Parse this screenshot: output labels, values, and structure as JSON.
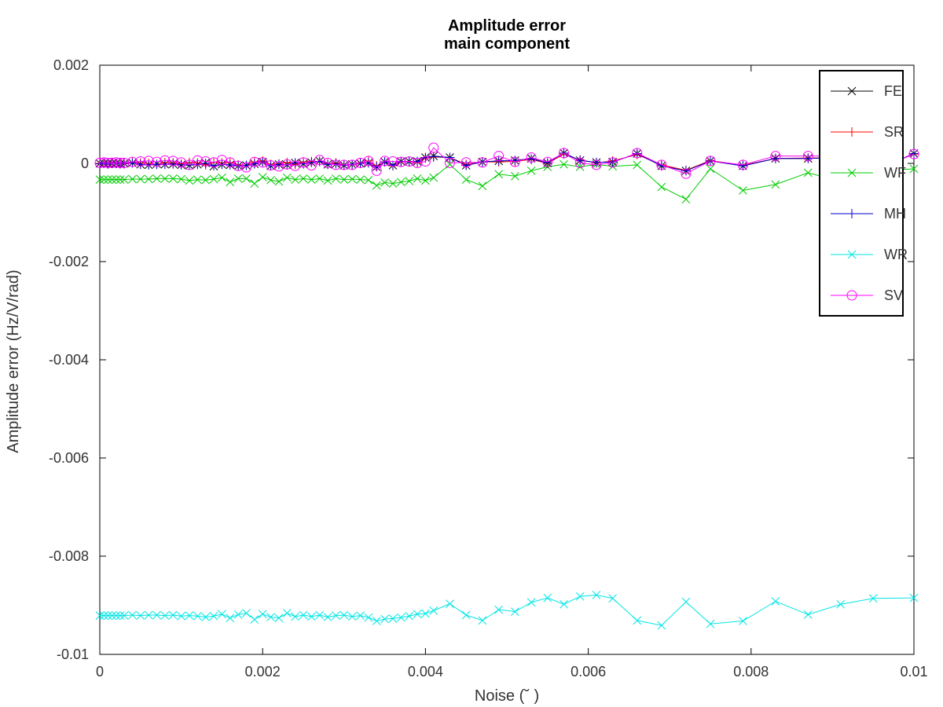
{
  "chart_data": {
    "type": "line",
    "title": "Amplitude error",
    "subtitle": "main component",
    "xlabel": "Noise (˘ )",
    "ylabel": "Amplitude error (Hz/V/rad)",
    "xlim": [
      0,
      0.01
    ],
    "ylim": [
      -0.01,
      0.002
    ],
    "xticks": [
      0,
      0.002,
      0.004,
      0.006,
      0.008,
      0.01
    ],
    "xtick_labels": [
      "0",
      "0.002",
      "0.004",
      "0.006",
      "0.008",
      "0.01"
    ],
    "yticks": [
      0.002,
      0,
      -0.002,
      -0.004,
      -0.006,
      -0.008,
      -0.01
    ],
    "ytick_labels": [
      "0.002",
      "0",
      "-0.002",
      "-0.004",
      "-0.006",
      "-0.008",
      "-0.01"
    ],
    "grid": false,
    "legend_position": "top-right",
    "x": [
      0,
      5e-05,
      0.0001,
      0.00015,
      0.0002,
      0.00025,
      0.0003,
      0.0004,
      0.0005,
      0.0006,
      0.0007,
      0.0008,
      0.0009,
      0.001,
      0.0011,
      0.0012,
      0.0013,
      0.0014,
      0.0015,
      0.0016,
      0.0017,
      0.0018,
      0.0019,
      0.002,
      0.0021,
      0.0022,
      0.0023,
      0.0024,
      0.0025,
      0.0026,
      0.0027,
      0.0028,
      0.0029,
      0.003,
      0.0031,
      0.0032,
      0.0033,
      0.0034,
      0.0035,
      0.0036,
      0.0037,
      0.0038,
      0.0039,
      0.004,
      0.0041,
      0.0043,
      0.0045,
      0.0047,
      0.0049,
      0.0051,
      0.0053,
      0.0055,
      0.0057,
      0.0059,
      0.0061,
      0.0063,
      0.0066,
      0.0069,
      0.0072,
      0.0075,
      0.0079,
      0.0083,
      0.0087,
      0.0091,
      0.0095,
      0.01
    ],
    "series": [
      {
        "name": "FE",
        "color": "#000000",
        "marker": "x",
        "values": [
          0,
          0,
          0,
          0,
          0,
          -1e-05,
          0,
          1e-05,
          -2e-05,
          -3e-05,
          -1e-05,
          -2e-05,
          -1e-05,
          -3e-05,
          -4e-05,
          -2e-05,
          1e-05,
          -6e-05,
          -2e-05,
          -3e-05,
          -5e-05,
          -4e-05,
          -1e-05,
          3e-05,
          -5e-05,
          -2e-05,
          -3e-05,
          1e-05,
          -1e-05,
          2e-05,
          5e-05,
          -2e-05,
          -1e-05,
          -4e-05,
          -2e-05,
          0,
          1e-05,
          -7e-05,
          3e-05,
          -4e-05,
          4e-05,
          4e-05,
          4e-05,
          0.00012,
          0.00015,
          0.00012,
          -4e-05,
          3e-05,
          5e-05,
          6e-05,
          0.0001,
          1e-05,
          0.00021,
          6e-05,
          2e-05,
          3e-05,
          0.0002,
          -5e-05,
          -0.00015,
          5e-05,
          -5e-05,
          0.0001,
          0.0001,
          0.00013,
          -0.00016,
          0.0002
        ]
      },
      {
        "name": "SR",
        "color": "#ff0000",
        "marker": "+",
        "values": [
          0,
          1e-05,
          -1e-05,
          1e-05,
          0,
          1e-05,
          -1e-05,
          2e-05,
          1e-05,
          0,
          -2e-05,
          2e-05,
          1e-05,
          -1e-05,
          2e-05,
          1e-05,
          -3e-05,
          2e-05,
          1e-05,
          2e-05,
          -3e-05,
          -4e-05,
          3e-05,
          5e-05,
          -2e-05,
          -1e-05,
          2e-05,
          -2e-05,
          3e-05,
          4e-05,
          4e-05,
          -1e-05,
          1e-05,
          -3e-05,
          -3e-05,
          1e-05,
          5e-05,
          -5e-05,
          3e-05,
          -5e-05,
          3e-05,
          4e-05,
          1e-05,
          0.00011,
          0.00013,
          0.00012,
          -2e-05,
          3e-05,
          3e-05,
          4e-05,
          8e-05,
          0,
          0.00019,
          7e-05,
          1e-05,
          5e-05,
          0.00018,
          -3e-05,
          -0.00014,
          6e-05,
          -4e-05,
          0.0001,
          0.00011,
          0.00011,
          -0.00014,
          0.00019
        ]
      },
      {
        "name": "WF",
        "color": "#00cc00",
        "marker": "x",
        "values": [
          -0.00033,
          -0.00033,
          -0.00033,
          -0.00033,
          -0.00033,
          -0.00033,
          -0.00033,
          -0.00032,
          -0.00032,
          -0.00032,
          -0.00031,
          -0.00031,
          -0.00031,
          -0.00032,
          -0.00035,
          -0.00033,
          -0.00034,
          -0.00032,
          -0.00029,
          -0.00038,
          -0.00031,
          -0.00031,
          -0.00041,
          -0.00028,
          -0.00034,
          -0.00037,
          -0.00029,
          -0.00033,
          -0.00031,
          -0.00033,
          -0.00031,
          -0.00035,
          -0.00031,
          -0.00033,
          -0.00032,
          -0.00033,
          -0.00034,
          -0.00045,
          -0.00039,
          -0.00041,
          -0.00038,
          -0.00036,
          -0.00031,
          -0.00035,
          -0.00029,
          -2e-05,
          -0.00033,
          -0.00046,
          -0.00022,
          -0.00026,
          -0.00015,
          -7e-05,
          -2e-05,
          -7e-05,
          -2e-05,
          -6e-05,
          -3e-05,
          -0.00048,
          -0.00073,
          -0.00011,
          -0.00055,
          -0.00043,
          -0.00019,
          -0.00037,
          -0.00016,
          -0.00011
        ]
      },
      {
        "name": "MH",
        "color": "#0000cc",
        "marker": "+",
        "values": [
          -1e-05,
          0,
          -1e-05,
          0,
          0,
          -1e-05,
          0,
          1e-05,
          -2e-05,
          -3e-05,
          -2e-05,
          -2e-05,
          -1e-05,
          -3e-05,
          -3e-05,
          -2e-05,
          0,
          -5e-05,
          -2e-05,
          -3e-05,
          -5e-05,
          -4e-05,
          -1e-05,
          3e-05,
          -5e-05,
          -2e-05,
          -3e-05,
          1e-05,
          -1e-05,
          2e-05,
          4e-05,
          -2e-05,
          -1e-05,
          -4e-05,
          -2e-05,
          0,
          1e-05,
          -7e-05,
          3e-05,
          -4e-05,
          4e-05,
          3e-05,
          4e-05,
          0.00012,
          0.00014,
          0.00012,
          -4e-05,
          3e-05,
          5e-05,
          6e-05,
          9e-05,
          1e-05,
          0.00021,
          6e-05,
          2e-05,
          3e-05,
          0.0002,
          -5e-05,
          -0.00015,
          5e-05,
          -5e-05,
          0.0001,
          0.0001,
          0.00012,
          -0.00016,
          0.0002
        ]
      },
      {
        "name": "WR",
        "color": "#00e5e5",
        "marker": "x",
        "values": [
          -0.00921,
          -0.00921,
          -0.00921,
          -0.00921,
          -0.00921,
          -0.00921,
          -0.00921,
          -0.0092,
          -0.00921,
          -0.0092,
          -0.0092,
          -0.00921,
          -0.0092,
          -0.00922,
          -0.00921,
          -0.00922,
          -0.00924,
          -0.00922,
          -0.00918,
          -0.00926,
          -0.00919,
          -0.00916,
          -0.00929,
          -0.00918,
          -0.00924,
          -0.00926,
          -0.00916,
          -0.00923,
          -0.0092,
          -0.00923,
          -0.0092,
          -0.00924,
          -0.00921,
          -0.0092,
          -0.00923,
          -0.00921,
          -0.00925,
          -0.00932,
          -0.00928,
          -0.00927,
          -0.00925,
          -0.00922,
          -0.00918,
          -0.00917,
          -0.00911,
          -0.00897,
          -0.0092,
          -0.00931,
          -0.00909,
          -0.00913,
          -0.00894,
          -0.00885,
          -0.00898,
          -0.00882,
          -0.00879,
          -0.00886,
          -0.00931,
          -0.00941,
          -0.00893,
          -0.00938,
          -0.00932,
          -0.00892,
          -0.00919,
          -0.00898,
          -0.00886,
          -0.00885
        ]
      },
      {
        "name": "SV",
        "color": "#ff00ff",
        "marker": "o",
        "values": [
          1e-05,
          2e-05,
          1e-05,
          1e-05,
          2e-05,
          1e-05,
          1e-05,
          3e-05,
          4e-05,
          5e-05,
          3e-05,
          6e-05,
          5e-05,
          2e-05,
          -3e-05,
          6e-05,
          4e-05,
          2e-05,
          7e-05,
          2e-05,
          -5e-05,
          -8e-05,
          3e-05,
          2e-05,
          -4e-05,
          -6e-05,
          -2e-05,
          -5e-05,
          2e-05,
          -4e-05,
          7e-05,
          1e-05,
          -3e-05,
          -3e-05,
          -3e-05,
          1e-05,
          5e-05,
          -0.00015,
          5e-05,
          4e-05,
          3e-05,
          4e-05,
          1e-05,
          4e-05,
          0.00032,
          1e-05,
          2e-05,
          2e-05,
          0.00015,
          3e-05,
          0.00012,
          3e-05,
          0.00021,
          1e-05,
          -3e-05,
          2e-05,
          0.00021,
          -3e-05,
          -0.00021,
          5e-05,
          -3e-05,
          0.00015,
          0.00015,
          0.00015,
          -0.00015,
          0.00019
        ]
      }
    ]
  }
}
